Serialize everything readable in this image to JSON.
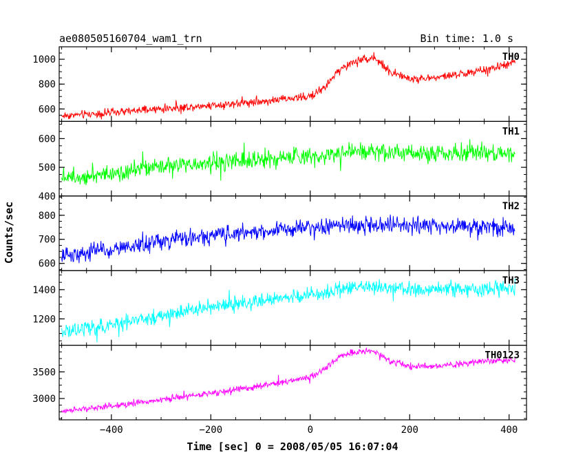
{
  "header": {
    "title": "ae080505160704_wam1_trn",
    "bin_time": "Bin time: 1.0 s"
  },
  "chart_data": {
    "type": "line",
    "xlabel": "Time [sec] 0 = 2008/05/05 16:07:04",
    "ylabel": "Counts/sec",
    "xlim": [
      -505,
      435
    ],
    "xticks": [
      -400,
      -200,
      0,
      200,
      400
    ],
    "x_range_data": [
      -500,
      412
    ],
    "panels": [
      {
        "name": "TH0",
        "color": "#ff0000",
        "ylim": [
          500,
          1100
        ],
        "yticks": [
          600,
          800,
          1000
        ],
        "noise": 30,
        "trend_x": [
          -500,
          -400,
          -300,
          -200,
          -100,
          0,
          30,
          60,
          100,
          130,
          160,
          200,
          250,
          300,
          350,
          400,
          412
        ],
        "trend_y": [
          545,
          570,
          600,
          630,
          660,
          700,
          780,
          920,
          1000,
          1010,
          900,
          840,
          850,
          880,
          910,
          960,
          980
        ]
      },
      {
        "name": "TH1",
        "color": "#00ff00",
        "ylim": [
          400,
          660
        ],
        "yticks": [
          400,
          500,
          600
        ],
        "noise": 28,
        "trend_x": [
          -500,
          -400,
          -300,
          -200,
          -100,
          0,
          100,
          200,
          300,
          412
        ],
        "trend_y": [
          465,
          480,
          500,
          515,
          530,
          540,
          555,
          550,
          550,
          548
        ]
      },
      {
        "name": "TH2",
        "color": "#0000ff",
        "ylim": [
          570,
          880
        ],
        "yticks": [
          600,
          700,
          800
        ],
        "noise": 32,
        "trend_x": [
          -500,
          -400,
          -300,
          -200,
          -100,
          0,
          100,
          200,
          300,
          412
        ],
        "trend_y": [
          630,
          660,
          690,
          715,
          735,
          750,
          760,
          760,
          755,
          745
        ]
      },
      {
        "name": "TH3",
        "color": "#00ffff",
        "ylim": [
          1020,
          1530
        ],
        "yticks": [
          1200,
          1400
        ],
        "noise": 45,
        "trend_x": [
          -500,
          -400,
          -300,
          -200,
          -100,
          0,
          100,
          200,
          300,
          412
        ],
        "trend_y": [
          1110,
          1160,
          1220,
          1280,
          1320,
          1370,
          1420,
          1400,
          1400,
          1410
        ]
      },
      {
        "name": "TH0123",
        "color": "#ff00ff",
        "ylim": [
          2600,
          4000
        ],
        "yticks": [
          3000,
          3500
        ],
        "noise": 55,
        "trend_x": [
          -500,
          -400,
          -300,
          -200,
          -100,
          0,
          30,
          60,
          100,
          130,
          160,
          200,
          250,
          300,
          350,
          412
        ],
        "trend_y": [
          2760,
          2860,
          2980,
          3100,
          3230,
          3400,
          3550,
          3800,
          3880,
          3880,
          3700,
          3600,
          3600,
          3650,
          3700,
          3730
        ]
      }
    ]
  }
}
